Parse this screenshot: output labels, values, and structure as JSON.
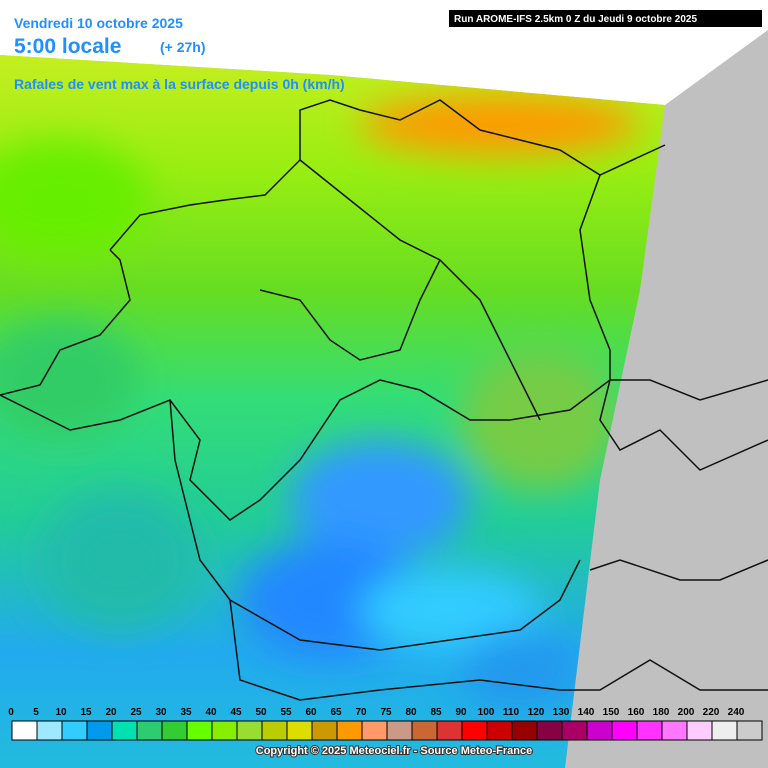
{
  "header": {
    "date": "Vendredi 10 octobre 2025",
    "time": "5:00 locale",
    "lead": "(+ 27h)",
    "subtitle": "Rafales de vent max à la surface depuis 0h (km/h)",
    "run": "Run AROME-IFS 2.5km 0 Z du Jeudi 9 octobre 2025"
  },
  "legend": {
    "ticks": [
      0,
      5,
      10,
      15,
      20,
      25,
      30,
      35,
      40,
      45,
      50,
      55,
      60,
      65,
      70,
      75,
      80,
      85,
      90,
      100,
      110,
      120,
      130,
      140,
      150,
      160,
      180,
      200,
      220,
      240
    ],
    "colors": [
      "#ffffff",
      "#a0e8ff",
      "#33ccff",
      "#0099ee",
      "#00e0b0",
      "#2ecc71",
      "#33cc33",
      "#66ff00",
      "#88ee00",
      "#99dd33",
      "#bbcc00",
      "#dddd00",
      "#cc9900",
      "#ff9900",
      "#ff9966",
      "#cc9988",
      "#cc6633",
      "#dd3333",
      "#ff0000",
      "#cc0000",
      "#990000",
      "#880044",
      "#aa0066",
      "#cc00cc",
      "#ff00ff",
      "#ff33ff",
      "#ff77ff",
      "#ffccff",
      "#eeeeee",
      "#cccccc"
    ]
  },
  "footer": {
    "copyright": "Copyright © 2025 Meteociel.fr - Source Meteo-France"
  }
}
